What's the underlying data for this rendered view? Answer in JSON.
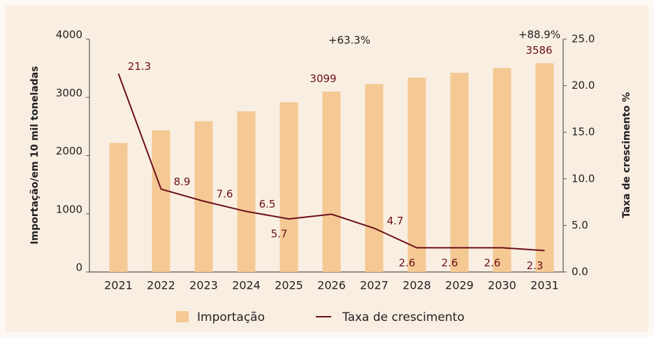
{
  "chart_data": {
    "type": "bar",
    "categories": [
      "2021",
      "2022",
      "2023",
      "2024",
      "2025",
      "2026",
      "2027",
      "2028",
      "2029",
      "2030",
      "2031"
    ],
    "series": [
      {
        "name": "Importação",
        "type": "bar",
        "color": "#f5c994",
        "values": [
          2217,
          2434,
          2590,
          2760,
          2916,
          3099,
          3229,
          3337,
          3422,
          3506,
          3586
        ],
        "value_labels": [
          null,
          null,
          null,
          null,
          null,
          "3099",
          null,
          null,
          null,
          null,
          "3586"
        ]
      },
      {
        "name": "Taxa de crescimento",
        "type": "line",
        "axis": "y2",
        "color": "#6b0f1a",
        "values": [
          21.3,
          8.9,
          7.6,
          6.5,
          5.7,
          6.2,
          4.7,
          2.6,
          2.6,
          2.6,
          2.3
        ],
        "value_labels": [
          "21.3",
          "8.9",
          "7.6",
          "6.5",
          "5.7",
          null,
          "4.7",
          "2.6",
          "2.6",
          "2.6",
          "2.3"
        ]
      }
    ],
    "ylabel": "Importação/em 10 mil toneladas",
    "y2label": "Taxa de crescimento %",
    "ylim": [
      0,
      4000
    ],
    "yticks": [
      0,
      1000,
      2000,
      3000,
      4000
    ],
    "y2lim": [
      0,
      25
    ],
    "y2ticks": [
      {
        "value": 0,
        "label": "0.0"
      },
      {
        "value": 5,
        "label": "5.0"
      },
      {
        "value": 10,
        "label": "10.0"
      },
      {
        "value": 15,
        "label": "15.0"
      },
      {
        "value": 20,
        "label": "20.0"
      },
      {
        "value": 25,
        "label": "25.0"
      }
    ],
    "annotations": [
      "+63.3%",
      "+88.9%"
    ],
    "legend": "bottom"
  }
}
